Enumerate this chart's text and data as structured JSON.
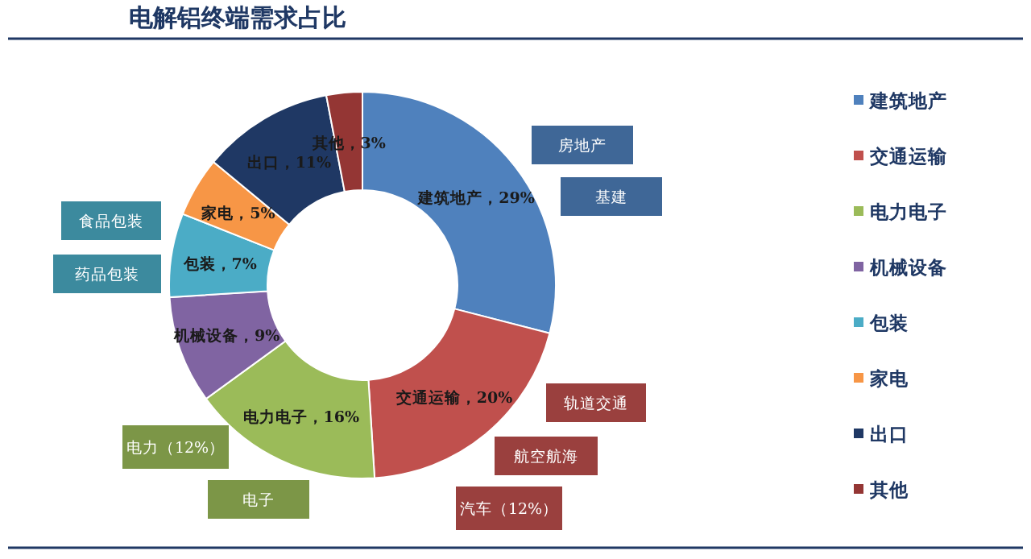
{
  "chart_data": {
    "type": "donut",
    "title": "电解铝终端需求占比",
    "categories": [
      "建筑地产",
      "交通运输",
      "电力电子",
      "机械设备",
      "包装",
      "家电",
      "出口",
      "其他"
    ],
    "values": [
      29,
      20,
      16,
      9,
      7,
      5,
      11,
      3
    ],
    "colors": [
      "#4f81bd",
      "#c0504d",
      "#9bbb59",
      "#8064a2",
      "#4bacc6",
      "#f79646",
      "#1f3864",
      "#943634"
    ],
    "value_labels": [
      "建筑地产，29%",
      "交通运输，20%",
      "电力电子，16%",
      "机械设备，9%",
      "包装，7%",
      "家电，5%",
      "出口，11%",
      "其他，3%"
    ],
    "legend": "right",
    "annotations": [
      {
        "text": "房地产",
        "x": "建筑地产"
      },
      {
        "text": "基建",
        "x": "建筑地产"
      },
      {
        "text": "轨道交通",
        "x": "交通运输"
      },
      {
        "text": "航空航海",
        "x": "交通运输"
      },
      {
        "text": "汽车（12%）",
        "x": "交通运输"
      },
      {
        "text": "电力（12%）",
        "x": "电力电子"
      },
      {
        "text": "电子",
        "x": "电力电子"
      },
      {
        "text": "食品包装",
        "x": "包装"
      },
      {
        "text": "药品包装",
        "x": "包装"
      }
    ]
  }
}
